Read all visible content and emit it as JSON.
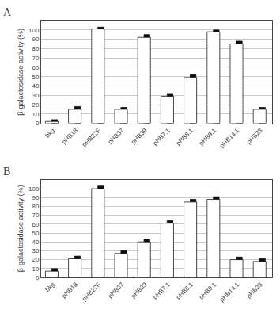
{
  "chart_data": [
    {
      "type": "bar",
      "title": "A",
      "categories": [
        "bkg",
        "pHB18",
        "pHB22F",
        "pHB37",
        "pHB39",
        "pHB7.1",
        "pHB8.1",
        "pHB9.1",
        "pHB14.1",
        "pHB23"
      ],
      "series": [
        {
          "color": "#111111",
          "values": [
            4,
            18,
            103,
            17,
            95,
            32,
            52,
            100,
            88,
            17
          ]
        },
        {
          "color": "#ffffff",
          "values": [
            2,
            15,
            101,
            15,
            92,
            29,
            49,
            98,
            85,
            15
          ]
        }
      ],
      "ylabel": "β-galactosidase activity (%)",
      "ylim": [
        0,
        110
      ],
      "yticks": [
        0,
        10,
        20,
        30,
        40,
        50,
        60,
        70,
        80,
        90,
        100
      ],
      "grid": true
    },
    {
      "type": "bar",
      "title": "B",
      "categories": [
        "bkg",
        "pHB18",
        "pHB22F",
        "pHB37",
        "pHB39",
        "pHB7.1",
        "pHB8.1",
        "pHB9.1",
        "pHB14.1",
        "pHB23"
      ],
      "series": [
        {
          "color": "#111111",
          "values": [
            10,
            24,
            103,
            30,
            43,
            64,
            88,
            91,
            23,
            21
          ]
        },
        {
          "color": "#ffffff",
          "values": [
            7,
            21,
            100,
            27,
            40,
            61,
            85,
            88,
            20,
            18
          ]
        }
      ],
      "ylabel": "β-galactosidase activity (%)",
      "ylim": [
        0,
        110
      ],
      "yticks": [
        0,
        10,
        20,
        30,
        40,
        50,
        60,
        70,
        80,
        90,
        100
      ],
      "grid": true
    }
  ]
}
